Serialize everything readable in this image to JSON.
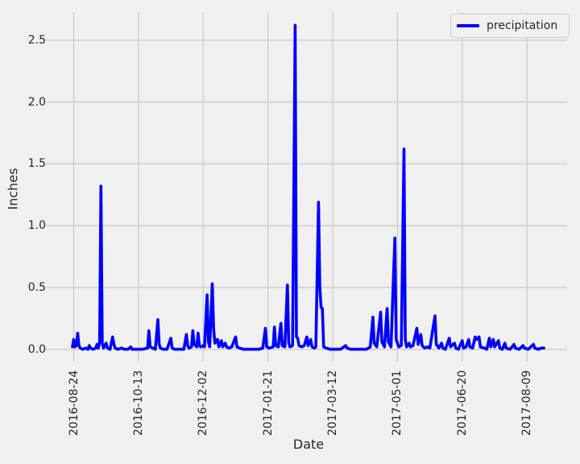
{
  "figure": {
    "background_color": "#f0f0f0",
    "grid_color": "#c9c9c9",
    "text_color": "#262626"
  },
  "chart_data": {
    "type": "line",
    "title": "",
    "xlabel": "Date",
    "ylabel": "Inches",
    "grid": true,
    "legend": {
      "position": "upper right",
      "entries": [
        {
          "label": "precipitation",
          "color": "#0000ff"
        }
      ]
    },
    "x_unit": "days since 2016-08-23",
    "xlim": [
      -18,
      382
    ],
    "ylim": [
      -0.1,
      2.727
    ],
    "x_ticks": [
      {
        "day": 1,
        "label": "2016-08-24"
      },
      {
        "day": 51,
        "label": "2016-10-13"
      },
      {
        "day": 101,
        "label": "2016-12-02"
      },
      {
        "day": 151,
        "label": "2017-01-21"
      },
      {
        "day": 201,
        "label": "2017-03-12"
      },
      {
        "day": 251,
        "label": "2017-05-01"
      },
      {
        "day": 301,
        "label": "2017-06-20"
      },
      {
        "day": 351,
        "label": "2017-08-09"
      }
    ],
    "y_ticks": [
      0.0,
      0.5,
      1.0,
      1.5,
      2.0,
      2.5
    ],
    "series": [
      {
        "name": "precipitation",
        "color": "#0000ff",
        "linewidth": 3.6,
        "points": [
          [
            0,
            0.02
          ],
          [
            1,
            0.08
          ],
          [
            2,
            0.02
          ],
          [
            3,
            0.03
          ],
          [
            4,
            0.13
          ],
          [
            5,
            0.03
          ],
          [
            6,
            0.01
          ],
          [
            8,
            0
          ],
          [
            10,
            0.01
          ],
          [
            12,
            0
          ],
          [
            13,
            0.03
          ],
          [
            14,
            0.01
          ],
          [
            16,
            0
          ],
          [
            18,
            0.01
          ],
          [
            19,
            0.04
          ],
          [
            20,
            0.01
          ],
          [
            21,
            0.06
          ],
          [
            22,
            1.32
          ],
          [
            23,
            0.05
          ],
          [
            24,
            0.01
          ],
          [
            26,
            0.05
          ],
          [
            27,
            0.01
          ],
          [
            29,
            0
          ],
          [
            31,
            0.1
          ],
          [
            32,
            0.04
          ],
          [
            33,
            0.01
          ],
          [
            35,
            0
          ],
          [
            38,
            0.01
          ],
          [
            40,
            0
          ],
          [
            43,
            0
          ],
          [
            45,
            0.02
          ],
          [
            46,
            0
          ],
          [
            50,
            0
          ],
          [
            54,
            0
          ],
          [
            58,
            0.01
          ],
          [
            59,
            0.15
          ],
          [
            60,
            0.02
          ],
          [
            62,
            0.01
          ],
          [
            64,
            0
          ],
          [
            66,
            0.24
          ],
          [
            67,
            0.04
          ],
          [
            68,
            0.01
          ],
          [
            70,
            0
          ],
          [
            73,
            0
          ],
          [
            76,
            0.09
          ],
          [
            77,
            0.01
          ],
          [
            79,
            0
          ],
          [
            83,
            0
          ],
          [
            86,
            0
          ],
          [
            88,
            0.12
          ],
          [
            89,
            0.03
          ],
          [
            90,
            0.01
          ],
          [
            92,
            0.02
          ],
          [
            93,
            0.15
          ],
          [
            94,
            0.04
          ],
          [
            96,
            0.02
          ],
          [
            97,
            0.13
          ],
          [
            98,
            0.03
          ],
          [
            99,
            0.02
          ],
          [
            101,
            0.03
          ],
          [
            102,
            0.02
          ],
          [
            104,
            0.44
          ],
          [
            105,
            0.06
          ],
          [
            106,
            0.02
          ],
          [
            108,
            0.53
          ],
          [
            109,
            0.16
          ],
          [
            110,
            0.05
          ],
          [
            112,
            0.08
          ],
          [
            113,
            0.02
          ],
          [
            115,
            0.07
          ],
          [
            116,
            0.02
          ],
          [
            118,
            0.05
          ],
          [
            119,
            0.02
          ],
          [
            121,
            0.01
          ],
          [
            123,
            0.02
          ],
          [
            126,
            0.1
          ],
          [
            127,
            0.02
          ],
          [
            129,
            0.01
          ],
          [
            132,
            0
          ],
          [
            136,
            0
          ],
          [
            140,
            0
          ],
          [
            144,
            0
          ],
          [
            147,
            0.01
          ],
          [
            149,
            0.17
          ],
          [
            150,
            0.02
          ],
          [
            152,
            0.01
          ],
          [
            155,
            0.02
          ],
          [
            156,
            0.18
          ],
          [
            157,
            0.03
          ],
          [
            159,
            0.02
          ],
          [
            161,
            0.21
          ],
          [
            162,
            0.03
          ],
          [
            164,
            0.02
          ],
          [
            166,
            0.52
          ],
          [
            167,
            0.05
          ],
          [
            168,
            0.02
          ],
          [
            170,
            0.03
          ],
          [
            172,
            2.62
          ],
          [
            173,
            0.1
          ],
          [
            174,
            0.09
          ],
          [
            175,
            0.03
          ],
          [
            177,
            0.02
          ],
          [
            179,
            0.03
          ],
          [
            181,
            0.1
          ],
          [
            182,
            0.03
          ],
          [
            184,
            0.08
          ],
          [
            185,
            0.02
          ],
          [
            187,
            0.01
          ],
          [
            188,
            0.02
          ],
          [
            190,
            1.19
          ],
          [
            191,
            0.5
          ],
          [
            192,
            0.34
          ],
          [
            193,
            0.33
          ],
          [
            194,
            0.02
          ],
          [
            196,
            0.01
          ],
          [
            199,
            0
          ],
          [
            203,
            0
          ],
          [
            207,
            0
          ],
          [
            211,
            0.03
          ],
          [
            212,
            0.01
          ],
          [
            215,
            0
          ],
          [
            219,
            0
          ],
          [
            223,
            0
          ],
          [
            227,
            0
          ],
          [
            230,
            0.02
          ],
          [
            232,
            0.26
          ],
          [
            233,
            0.05
          ],
          [
            235,
            0.02
          ],
          [
            238,
            0.3
          ],
          [
            239,
            0.06
          ],
          [
            241,
            0.02
          ],
          [
            243,
            0.33
          ],
          [
            244,
            0.06
          ],
          [
            246,
            0.02
          ],
          [
            249,
            0.9
          ],
          [
            250,
            0.08
          ],
          [
            252,
            0.02
          ],
          [
            254,
            0.03
          ],
          [
            256,
            1.62
          ],
          [
            257,
            0.08
          ],
          [
            258,
            0.02
          ],
          [
            260,
            0.05
          ],
          [
            261,
            0.02
          ],
          [
            263,
            0.03
          ],
          [
            266,
            0.17
          ],
          [
            267,
            0.04
          ],
          [
            269,
            0.12
          ],
          [
            270,
            0.03
          ],
          [
            272,
            0.01
          ],
          [
            274,
            0.02
          ],
          [
            276,
            0.01
          ],
          [
            280,
            0.27
          ],
          [
            281,
            0.04
          ],
          [
            283,
            0.01
          ],
          [
            285,
            0.05
          ],
          [
            286,
            0.01
          ],
          [
            288,
            0
          ],
          [
            291,
            0.09
          ],
          [
            292,
            0.02
          ],
          [
            295,
            0.05
          ],
          [
            296,
            0.01
          ],
          [
            298,
            0
          ],
          [
            301,
            0.07
          ],
          [
            302,
            0.01
          ],
          [
            304,
            0.02
          ],
          [
            306,
            0.08
          ],
          [
            307,
            0.02
          ],
          [
            309,
            0.01
          ],
          [
            311,
            0.1
          ],
          [
            312,
            0.08
          ],
          [
            314,
            0.1
          ],
          [
            315,
            0.02
          ],
          [
            318,
            0.01
          ],
          [
            320,
            0
          ],
          [
            322,
            0.09
          ],
          [
            323,
            0.02
          ],
          [
            325,
            0.08
          ],
          [
            326,
            0.02
          ],
          [
            329,
            0.07
          ],
          [
            330,
            0.01
          ],
          [
            332,
            0
          ],
          [
            334,
            0.05
          ],
          [
            335,
            0.01
          ],
          [
            338,
            0
          ],
          [
            341,
            0.04
          ],
          [
            342,
            0.01
          ],
          [
            345,
            0
          ],
          [
            348,
            0.03
          ],
          [
            349,
            0.01
          ],
          [
            352,
            0
          ],
          [
            356,
            0.04
          ],
          [
            357,
            0.01
          ],
          [
            360,
            0
          ],
          [
            362,
            0.01
          ],
          [
            364,
            0.01
          ]
        ]
      }
    ]
  }
}
